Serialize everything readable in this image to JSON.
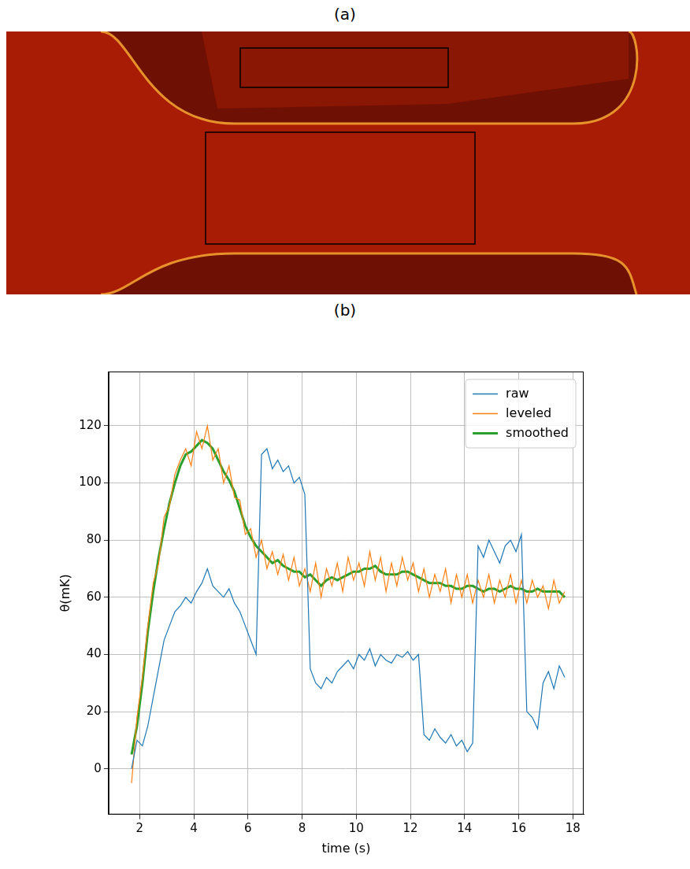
{
  "panel_labels": [
    "(a)",
    "(b)"
  ],
  "chart_data": {
    "type": "line",
    "x_label": "time (s)",
    "y_label": "θ(mK)",
    "x": [
      1.7,
      1.9,
      2.1,
      2.3,
      2.5,
      2.7,
      2.9,
      3.1,
      3.3,
      3.5,
      3.7,
      3.9,
      4.1,
      4.3,
      4.5,
      4.7,
      4.9,
      5.1,
      5.3,
      5.5,
      5.7,
      5.9,
      6.1,
      6.3,
      6.5,
      6.7,
      6.9,
      7.1,
      7.3,
      7.5,
      7.7,
      7.9,
      8.1,
      8.3,
      8.5,
      8.7,
      8.9,
      9.1,
      9.3,
      9.5,
      9.7,
      9.9,
      10.1,
      10.3,
      10.5,
      10.7,
      10.9,
      11.1,
      11.3,
      11.5,
      11.7,
      11.9,
      12.1,
      12.3,
      12.5,
      12.7,
      12.9,
      13.1,
      13.3,
      13.5,
      13.7,
      13.9,
      14.1,
      14.3,
      14.5,
      14.7,
      14.9,
      15.1,
      15.3,
      15.5,
      15.7,
      15.9,
      16.1,
      16.3,
      16.5,
      16.7,
      16.9,
      17.1,
      17.3,
      17.5,
      17.7
    ],
    "series": [
      {
        "name": "raw",
        "color": "#1f77b4",
        "values": [
          0,
          10,
          8,
          15,
          25,
          35,
          45,
          50,
          55,
          57,
          60,
          58,
          62,
          65,
          70,
          64,
          62,
          60,
          63,
          58,
          55,
          50,
          45,
          40,
          110,
          112,
          105,
          108,
          104,
          106,
          100,
          102,
          96,
          35,
          30,
          28,
          32,
          30,
          34,
          36,
          38,
          35,
          40,
          38,
          42,
          36,
          40,
          38,
          37,
          40,
          39,
          41,
          38,
          40,
          12,
          10,
          14,
          11,
          9,
          12,
          8,
          10,
          6,
          9,
          78,
          74,
          80,
          76,
          72,
          78,
          80,
          76,
          82,
          20,
          18,
          14,
          30,
          34,
          28,
          36,
          32
        ]
      },
      {
        "name": "leveled",
        "color": "#ff7f0e",
        "values": [
          -5,
          18,
          32,
          50,
          65,
          72,
          88,
          92,
          103,
          108,
          112,
          106,
          118,
          112,
          120,
          108,
          112,
          100,
          106,
          95,
          94,
          82,
          84,
          74,
          80,
          70,
          76,
          68,
          75,
          66,
          74,
          64,
          70,
          62,
          72,
          60,
          70,
          64,
          72,
          62,
          74,
          66,
          72,
          64,
          76,
          66,
          74,
          62,
          72,
          64,
          74,
          66,
          72,
          62,
          70,
          60,
          68,
          62,
          70,
          58,
          68,
          60,
          68,
          58,
          66,
          60,
          68,
          58,
          66,
          60,
          68,
          58,
          66,
          58,
          66,
          60,
          64,
          56,
          66,
          58,
          62
        ]
      },
      {
        "name": "smoothed",
        "color": "#2ca02c",
        "values": [
          5,
          15,
          30,
          48,
          62,
          74,
          84,
          93,
          100,
          106,
          110,
          111,
          113,
          115,
          114,
          112,
          108,
          104,
          101,
          97,
          91,
          85,
          81,
          78,
          76,
          74,
          72,
          73,
          71,
          70,
          69,
          69,
          67,
          68,
          66,
          64,
          66,
          67,
          66,
          67,
          68,
          69,
          69,
          70,
          70,
          71,
          69,
          68,
          68,
          68,
          69,
          69,
          68,
          67,
          66,
          65,
          65,
          65,
          64,
          64,
          63,
          63,
          64,
          64,
          63,
          62,
          63,
          63,
          62,
          63,
          64,
          63,
          63,
          62,
          62,
          63,
          62,
          62,
          62,
          62,
          60
        ]
      }
    ],
    "xlim": [
      0.85,
      18.4
    ],
    "ylim": [
      -16,
      139
    ],
    "xticks": [
      2,
      4,
      6,
      8,
      10,
      12,
      14,
      16,
      18
    ],
    "yticks": [
      0,
      20,
      40,
      60,
      80,
      100,
      120
    ],
    "grid": true,
    "legend": "upper right"
  }
}
